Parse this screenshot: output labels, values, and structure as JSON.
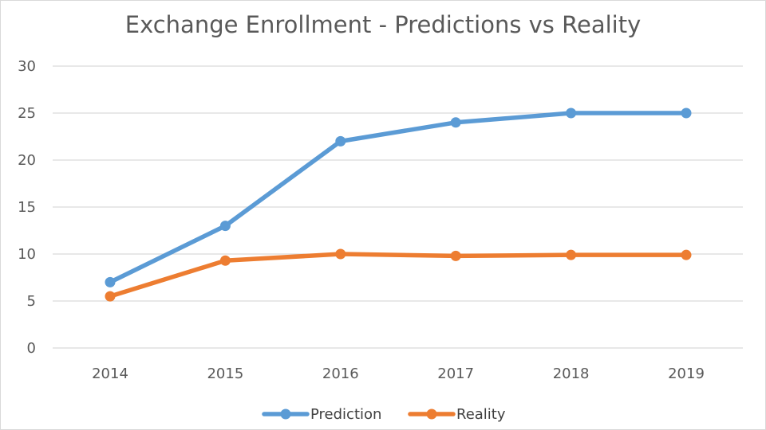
{
  "chart_data": {
    "type": "line",
    "title": "Exchange Enrollment - Predictions vs Reality",
    "xlabel": "",
    "ylabel": "",
    "categories": [
      "2014",
      "2015",
      "2016",
      "2017",
      "2018",
      "2019"
    ],
    "ylim": [
      0,
      30
    ],
    "yticks": [
      0,
      5,
      10,
      15,
      20,
      25,
      30
    ],
    "grid": true,
    "legend_position": "bottom",
    "series": [
      {
        "name": "Prediction",
        "color": "#5b9bd5",
        "values": [
          7,
          13,
          22,
          24,
          25,
          25
        ]
      },
      {
        "name": "Reality",
        "color": "#ed7d31",
        "values": [
          5.5,
          9.3,
          10,
          9.8,
          9.9,
          9.9
        ]
      }
    ]
  }
}
